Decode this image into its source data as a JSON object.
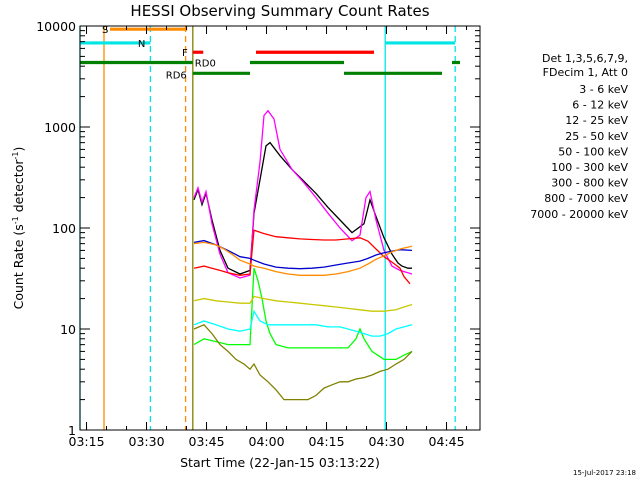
{
  "chart_data": {
    "type": "line",
    "title": "HESSI Observing Summary Count Rates",
    "xlabel": "Start Time (22-Jan-15 03:13:22)",
    "ylabel": "Count Rate (s⁻¹ detector⁻¹)",
    "ylabel_main": "Count Rate (s",
    "ylabel_sup1": "-1",
    "ylabel_mid": " detector",
    "ylabel_sup2": "-1",
    "ylabel_end": ")",
    "yscale": "log",
    "ylim": [
      1,
      10000
    ],
    "xlim_minutes": [
      0,
      100
    ],
    "x_ticks": [
      {
        "t": 1.63,
        "label": "03:15"
      },
      {
        "t": 16.63,
        "label": "03:30"
      },
      {
        "t": 31.63,
        "label": "03:45"
      },
      {
        "t": 46.63,
        "label": "04:00"
      },
      {
        "t": 61.63,
        "label": "04:15"
      },
      {
        "t": 76.63,
        "label": "04:30"
      },
      {
        "t": 91.63,
        "label": "04:45"
      }
    ],
    "y_ticks": [
      {
        "v": 1,
        "label": "1"
      },
      {
        "v": 10,
        "label": "10"
      },
      {
        "v": 100,
        "label": "100"
      },
      {
        "v": 1000,
        "label": "1000"
      },
      {
        "v": 10000,
        "label": "10000"
      }
    ],
    "legend_placement": "right",
    "legend_header": [
      "Det 1,3,5,6,7,9,",
      "FDecim 1, Att 0"
    ],
    "series": [
      {
        "name": "3 - 6 keV",
        "color": "#000000",
        "points": [
          [
            28.5,
            190
          ],
          [
            29.5,
            240
          ],
          [
            30.5,
            170
          ],
          [
            31.5,
            220
          ],
          [
            33,
            120
          ],
          [
            35,
            60
          ],
          [
            37,
            40
          ],
          [
            40,
            35
          ],
          [
            42.5,
            38
          ],
          [
            43.5,
            140
          ],
          [
            45,
            300
          ],
          [
            46.5,
            650
          ],
          [
            47.5,
            700
          ],
          [
            50,
            520
          ],
          [
            53,
            380
          ],
          [
            56,
            290
          ],
          [
            59,
            220
          ],
          [
            62,
            160
          ],
          [
            65,
            120
          ],
          [
            68,
            90
          ],
          [
            71,
            110
          ],
          [
            72.5,
            190
          ],
          [
            74,
            130
          ],
          [
            76,
            80
          ],
          [
            78,
            55
          ],
          [
            79.5,
            45
          ],
          [
            80.5,
            42
          ],
          [
            82,
            40
          ],
          [
            83,
            40
          ]
        ]
      },
      {
        "name": "6 - 12 keV",
        "color": "#ff00ff",
        "points": [
          [
            28.5,
            200
          ],
          [
            29.5,
            250
          ],
          [
            30.5,
            180
          ],
          [
            31.5,
            230
          ],
          [
            33,
            110
          ],
          [
            35,
            55
          ],
          [
            37,
            36
          ],
          [
            40,
            32
          ],
          [
            42.5,
            34
          ],
          [
            43.5,
            150
          ],
          [
            45,
            450
          ],
          [
            46,
            1300
          ],
          [
            47,
            1450
          ],
          [
            48.5,
            1200
          ],
          [
            50,
            600
          ],
          [
            53,
            380
          ],
          [
            56,
            280
          ],
          [
            59,
            200
          ],
          [
            62,
            140
          ],
          [
            65,
            100
          ],
          [
            68,
            75
          ],
          [
            70,
            85
          ],
          [
            71.5,
            200
          ],
          [
            72.5,
            230
          ],
          [
            74,
            120
          ],
          [
            76,
            60
          ],
          [
            78,
            42
          ],
          [
            80,
            38
          ],
          [
            83,
            35
          ]
        ]
      },
      {
        "name": "12 - 25 keV",
        "color": "#00ff00",
        "points": [
          [
            28.5,
            7
          ],
          [
            31,
            8
          ],
          [
            34,
            7.5
          ],
          [
            37,
            7
          ],
          [
            40,
            7
          ],
          [
            42.5,
            7
          ],
          [
            43.5,
            40
          ],
          [
            44.5,
            30
          ],
          [
            45.5,
            20
          ],
          [
            46.5,
            12
          ],
          [
            47.5,
            9
          ],
          [
            49,
            7
          ],
          [
            52,
            6.5
          ],
          [
            56,
            6.5
          ],
          [
            60,
            6.5
          ],
          [
            64,
            6.5
          ],
          [
            67,
            6.5
          ],
          [
            69,
            8
          ],
          [
            70,
            10
          ],
          [
            71,
            8
          ],
          [
            73,
            6
          ],
          [
            76,
            5
          ],
          [
            79,
            5
          ],
          [
            81,
            5.5
          ],
          [
            83,
            6
          ]
        ]
      },
      {
        "name": "25 - 50 keV",
        "color": "#00ffff",
        "points": [
          [
            28.5,
            11
          ],
          [
            31,
            12
          ],
          [
            34,
            11
          ],
          [
            37,
            10
          ],
          [
            40,
            9.5
          ],
          [
            42.5,
            10
          ],
          [
            43.5,
            15
          ],
          [
            45,
            12
          ],
          [
            47,
            11
          ],
          [
            50,
            11
          ],
          [
            53,
            11
          ],
          [
            56,
            11
          ],
          [
            59,
            11
          ],
          [
            62,
            10.5
          ],
          [
            65,
            10.5
          ],
          [
            67,
            10
          ],
          [
            69,
            9.5
          ],
          [
            71,
            9
          ],
          [
            73,
            8.5
          ],
          [
            75,
            8.5
          ],
          [
            77,
            9
          ],
          [
            79,
            10
          ],
          [
            81,
            10.5
          ],
          [
            83,
            11
          ]
        ]
      },
      {
        "name": "50 - 100 keV",
        "color": "#c8c800",
        "points": [
          [
            28.5,
            19
          ],
          [
            31,
            20
          ],
          [
            34,
            19
          ],
          [
            37,
            18.5
          ],
          [
            40,
            18
          ],
          [
            42.5,
            18
          ],
          [
            43.5,
            21
          ],
          [
            46,
            20
          ],
          [
            49,
            19
          ],
          [
            52,
            18.5
          ],
          [
            55,
            18
          ],
          [
            58,
            17.5
          ],
          [
            61,
            17
          ],
          [
            64,
            16.5
          ],
          [
            67,
            16
          ],
          [
            70,
            15.5
          ],
          [
            73,
            15
          ],
          [
            76,
            15
          ],
          [
            79,
            15.5
          ],
          [
            81,
            16.5
          ],
          [
            83,
            17.5
          ]
        ]
      },
      {
        "name": "100 - 300 keV",
        "color": "#ff0000",
        "points": [
          [
            28.5,
            40
          ],
          [
            31,
            42
          ],
          [
            33,
            40
          ],
          [
            35,
            38
          ],
          [
            37,
            36
          ],
          [
            40,
            34
          ],
          [
            42.5,
            35
          ],
          [
            43.5,
            95
          ],
          [
            46,
            88
          ],
          [
            49,
            82
          ],
          [
            52,
            80
          ],
          [
            55,
            78
          ],
          [
            58,
            77
          ],
          [
            61,
            76
          ],
          [
            64,
            76
          ],
          [
            67,
            78
          ],
          [
            70,
            80
          ],
          [
            72,
            74
          ],
          [
            74,
            62
          ],
          [
            76,
            52
          ],
          [
            78,
            46
          ],
          [
            80,
            40
          ],
          [
            81,
            33
          ],
          [
            82.5,
            28
          ]
        ]
      },
      {
        "name": "300 - 800 keV",
        "color": "#0000cc",
        "points": [
          [
            28.5,
            72
          ],
          [
            31,
            75
          ],
          [
            34,
            68
          ],
          [
            37,
            60
          ],
          [
            40,
            52
          ],
          [
            42.5,
            50
          ],
          [
            43.5,
            48
          ],
          [
            46,
            44
          ],
          [
            49,
            41
          ],
          [
            52,
            40
          ],
          [
            55,
            39.5
          ],
          [
            58,
            40
          ],
          [
            61,
            41
          ],
          [
            64,
            43
          ],
          [
            67,
            45
          ],
          [
            70,
            47
          ],
          [
            72,
            50
          ],
          [
            74,
            54
          ],
          [
            76,
            57
          ],
          [
            78,
            59
          ],
          [
            80,
            61
          ],
          [
            83,
            60
          ]
        ]
      },
      {
        "name": "800 - 7000 keV",
        "color": "#ff8c00",
        "points": [
          [
            28.5,
            70
          ],
          [
            31,
            72
          ],
          [
            34,
            68
          ],
          [
            36,
            62
          ],
          [
            38,
            55
          ],
          [
            40,
            48
          ],
          [
            42.5,
            44
          ],
          [
            43.5,
            42
          ],
          [
            46,
            40
          ],
          [
            49,
            37
          ],
          [
            52,
            35
          ],
          [
            55,
            34
          ],
          [
            58,
            34
          ],
          [
            61,
            34
          ],
          [
            64,
            35
          ],
          [
            67,
            37
          ],
          [
            70,
            40
          ],
          [
            72,
            44
          ],
          [
            74,
            49
          ],
          [
            76,
            53
          ],
          [
            78,
            58
          ],
          [
            80,
            62
          ],
          [
            83,
            66
          ]
        ]
      },
      {
        "name": "7000 - 20000 keV",
        "color": "#808000",
        "points": [
          [
            28.5,
            10
          ],
          [
            31,
            11
          ],
          [
            33,
            9
          ],
          [
            35,
            7
          ],
          [
            37,
            6
          ],
          [
            39,
            5
          ],
          [
            41,
            4.5
          ],
          [
            42.5,
            4
          ],
          [
            43.5,
            4.5
          ],
          [
            45,
            3.5
          ],
          [
            47,
            3
          ],
          [
            49,
            2.5
          ],
          [
            51,
            2
          ],
          [
            53,
            2
          ],
          [
            55,
            2
          ],
          [
            57,
            2
          ],
          [
            59,
            2.2
          ],
          [
            61,
            2.6
          ],
          [
            63,
            2.8
          ],
          [
            65,
            3
          ],
          [
            67,
            3
          ],
          [
            69,
            3.2
          ],
          [
            71,
            3.3
          ],
          [
            73,
            3.5
          ],
          [
            75,
            3.8
          ],
          [
            77,
            4
          ],
          [
            79,
            4.5
          ],
          [
            81,
            5
          ],
          [
            83,
            6
          ]
        ]
      }
    ],
    "vertical_lines": [
      {
        "t": 0.0,
        "color": "#00e5e5",
        "dash": false
      },
      {
        "t": 6.0,
        "color": "#ff8c00",
        "dash": false
      },
      {
        "t": 17.6,
        "color": "#00e5e5",
        "dash": true
      },
      {
        "t": 26.4,
        "color": "#ff8c00",
        "dash": true
      },
      {
        "t": 28.2,
        "color": "#808000",
        "dash": false
      },
      {
        "t": 76.3,
        "color": "#00e5e5",
        "dash": false
      },
      {
        "t": 93.8,
        "color": "#00e5e5",
        "dash": true
      }
    ],
    "status_bars": [
      {
        "label": "S",
        "color": "#ff8c00",
        "t0": 7.5,
        "t1": 26.8,
        "level": 9300
      },
      {
        "label": "N",
        "color": "#00e5e5",
        "t0": 0.0,
        "t1": 17.6,
        "level": 6800
      },
      {
        "label": "",
        "color": "#00e5e5",
        "t0": 76.3,
        "t1": 93.8,
        "level": 6800
      },
      {
        "label": "F",
        "color": "#ff0000",
        "t0": 28.2,
        "t1": 30.8,
        "level": 5500
      },
      {
        "label": "",
        "color": "#ff0000",
        "t0": 44.0,
        "t1": 73.5,
        "level": 5500
      },
      {
        "label": "RD0",
        "color": "#008000",
        "t0": 0.0,
        "t1": 28.2,
        "level": 4350
      },
      {
        "label": "",
        "color": "#008000",
        "t0": 42.5,
        "t1": 66.0,
        "level": 4350
      },
      {
        "label": "",
        "color": "#008000",
        "t0": 93.0,
        "t1": 95.0,
        "level": 4350
      },
      {
        "label": "RD6",
        "color": "#008000",
        "t0": 28.2,
        "t1": 42.5,
        "level": 3400
      },
      {
        "label": "",
        "color": "#008000",
        "t0": 66.0,
        "t1": 90.5,
        "level": 3400
      }
    ],
    "footer": "15-Jul-2017 23:18"
  }
}
